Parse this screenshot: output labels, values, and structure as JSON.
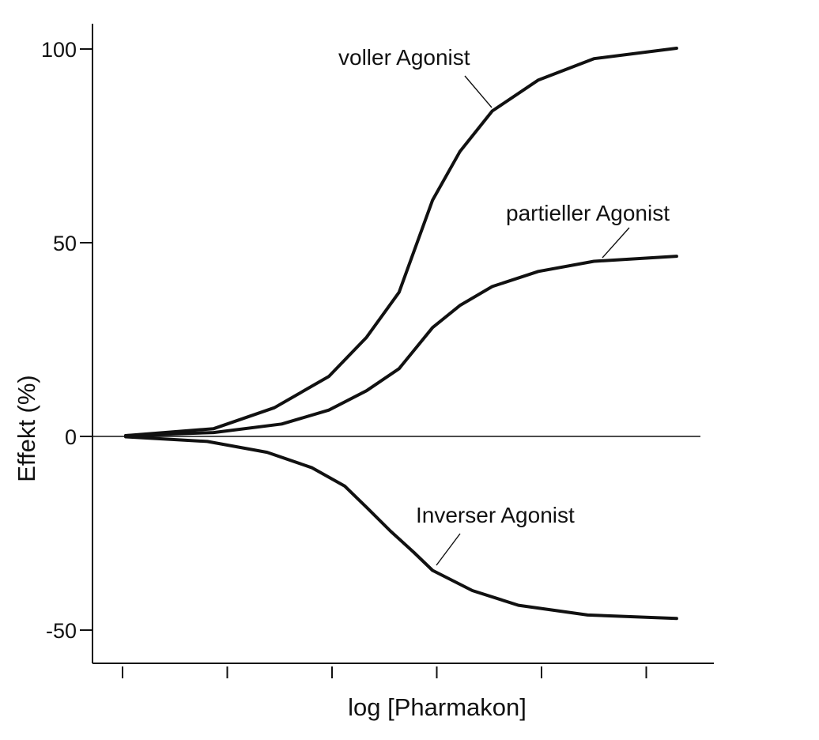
{
  "chart_data": {
    "type": "line",
    "xlabel": "log [Pharmakon]",
    "ylabel": "Effekt (%)",
    "xlim": [
      -0.3,
      5.6
    ],
    "ylim": [
      -58,
      106
    ],
    "x_ticks": [
      0,
      1,
      2,
      3,
      4,
      5
    ],
    "y_ticks": [
      {
        "value": 100,
        "label": "100"
      },
      {
        "value": 50,
        "label": "50"
      },
      {
        "value": 0,
        "label": "0"
      },
      {
        "value": -50,
        "label": "-50"
      }
    ],
    "zero_line": true,
    "grid": false,
    "series": [
      {
        "name": "voller Agonist",
        "x": [
          0.03,
          0.87,
          1.45,
          1.97,
          2.33,
          2.64,
          2.96,
          3.22,
          3.53,
          3.97,
          4.5,
          5.29
        ],
        "y": [
          0.2,
          2,
          7.4,
          15.5,
          25.6,
          37.2,
          61,
          73.5,
          84,
          92,
          97.5,
          100.2
        ]
      },
      {
        "name": "partieller Agonist",
        "x": [
          0.03,
          0.87,
          1.52,
          1.97,
          2.33,
          2.64,
          2.96,
          3.22,
          3.53,
          3.97,
          4.5,
          5.29
        ],
        "y": [
          0.2,
          1,
          3.2,
          6.8,
          11.8,
          17.5,
          28.1,
          33.8,
          38.7,
          42.6,
          45.2,
          46.5
        ]
      },
      {
        "name": "Inverser Agonist",
        "x": [
          0.03,
          0.81,
          1.38,
          1.81,
          2.12,
          2.33,
          2.56,
          2.78,
          2.96,
          3.34,
          3.78,
          4.44,
          5.29
        ],
        "y": [
          -0.1,
          -1.3,
          -4.1,
          -8.1,
          -12.8,
          -18.3,
          -24.5,
          -29.9,
          -34.6,
          -39.8,
          -43.6,
          -46.1,
          -47
        ]
      }
    ],
    "annotations": [
      {
        "text": "voller Agonist",
        "series": "voller Agonist"
      },
      {
        "text": "partieller Agonist",
        "series": "partieller Agonist"
      },
      {
        "text": "Inverser Agonist",
        "series": "Inverser Agonist"
      }
    ]
  }
}
